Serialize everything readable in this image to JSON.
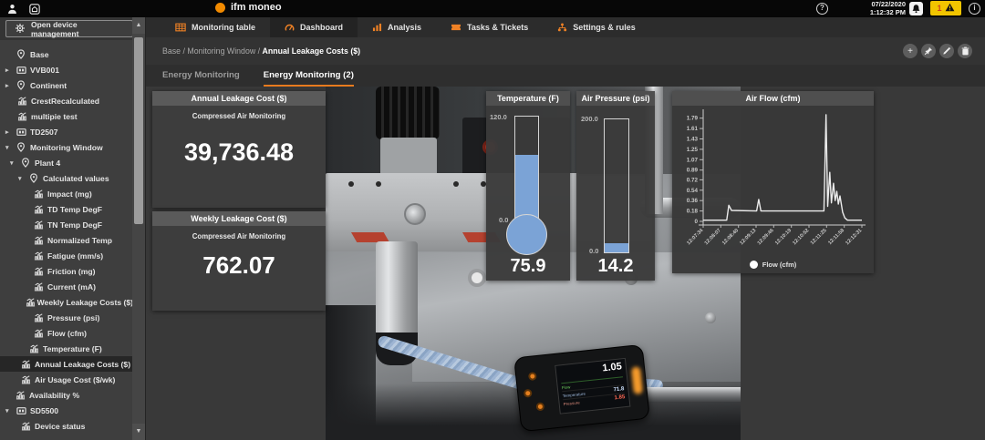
{
  "topbar": {
    "brand": "ifm moneo",
    "date": "07/22/2020",
    "time": "1:12:32 PM",
    "help_glyph": "?",
    "info_glyph": "i",
    "alert_count": "1"
  },
  "nav": {
    "device_management_label": "Open device management",
    "tabs": [
      {
        "label": "Monitoring table",
        "icon": "table",
        "active": false
      },
      {
        "label": "Dashboard",
        "icon": "gauge",
        "active": true
      },
      {
        "label": "Analysis",
        "icon": "analysis",
        "active": false
      },
      {
        "label": "Tasks & Tickets",
        "icon": "ticket",
        "active": false
      },
      {
        "label": "Settings & rules",
        "icon": "rules",
        "active": false
      }
    ]
  },
  "breadcrumb": {
    "path_prefix": "Base / Monitoring Window / ",
    "current": "Annual Leakage Costs ($)"
  },
  "subtabs": [
    {
      "label": "Energy Monitoring",
      "active": false
    },
    {
      "label": "Energy Monitoring (2)",
      "active": true
    }
  ],
  "sidebar": {
    "items": [
      {
        "label": "Base",
        "icon": "location",
        "arrow": "",
        "x": 18
      },
      {
        "label": "VVB001",
        "icon": "device",
        "arrow": "right",
        "x": 18
      },
      {
        "label": "Continent",
        "icon": "location",
        "arrow": "right",
        "x": 18
      },
      {
        "label": "CrestRecalculated",
        "icon": "calc",
        "arrow": "",
        "x": 19
      },
      {
        "label": "multipie test",
        "icon": "calc",
        "arrow": "",
        "x": 19
      },
      {
        "label": "TD2507",
        "icon": "device",
        "arrow": "right",
        "x": 18
      },
      {
        "label": "Monitoring Window",
        "icon": "location",
        "arrow": "down",
        "x": 18
      },
      {
        "label": "Plant 4",
        "icon": "location",
        "arrow": "down",
        "x": 23
      },
      {
        "label": "Calculated values",
        "icon": "location",
        "arrow": "down",
        "x": 32
      },
      {
        "label": "Impact (mg)",
        "icon": "calc",
        "arrow": "",
        "x": 37
      },
      {
        "label": "TD Temp DegF",
        "icon": "calc",
        "arrow": "",
        "x": 37
      },
      {
        "label": "TN Temp DegF",
        "icon": "calc",
        "arrow": "",
        "x": 37
      },
      {
        "label": "Normalized Temp",
        "icon": "calc",
        "arrow": "",
        "x": 37
      },
      {
        "label": "Fatigue (mm/s)",
        "icon": "calc",
        "arrow": "",
        "x": 37
      },
      {
        "label": "Friction (mg)",
        "icon": "calc",
        "arrow": "",
        "x": 37
      },
      {
        "label": "Current (mA)",
        "icon": "calc",
        "arrow": "",
        "x": 37
      },
      {
        "label": "Weekly Leakage Costs ($)",
        "icon": "calc",
        "arrow": "",
        "x": 37
      },
      {
        "label": "Pressure (psi)",
        "icon": "calc",
        "arrow": "",
        "x": 37
      },
      {
        "label": "Flow (cfm)",
        "icon": "calc",
        "arrow": "",
        "x": 37
      },
      {
        "label": "Temperature (F)",
        "icon": "calc",
        "arrow": "",
        "x": 32
      },
      {
        "label": "Annual Leakage Costs ($)",
        "icon": "calc",
        "arrow": "",
        "x": 23,
        "selected": true
      },
      {
        "label": "Air Usage Cost ($/wk)",
        "icon": "calc",
        "arrow": "",
        "x": 23
      },
      {
        "label": "Availability %",
        "icon": "calc",
        "arrow": "",
        "x": 17
      },
      {
        "label": "SD5500",
        "icon": "device",
        "arrow": "down",
        "x": 18
      },
      {
        "label": "Device status",
        "icon": "calc",
        "arrow": "",
        "x": 23
      }
    ]
  },
  "cards": {
    "annual": {
      "title": "Annual Leakage Cost ($)",
      "subtitle": "Compressed Air Monitoring",
      "value": "39,736.48"
    },
    "weekly": {
      "title": "Weekly Leakage Cost ($)",
      "subtitle": "Compressed Air Monitoring",
      "value": "762.07"
    },
    "temperature": {
      "title": "Temperature (F)",
      "max_label": "120.0",
      "min_label": "0.0",
      "value": "75.9",
      "fill_pct": 63
    },
    "pressure": {
      "title": "Air Pressure (psi)",
      "max_label": "200.0",
      "min_label": "0.0",
      "value": "14.2",
      "fill_pct": 7
    }
  },
  "chart_data": {
    "type": "line",
    "title": "Air Flow (cfm)",
    "legend": [
      "Flow (cfm)"
    ],
    "ylim": [
      0,
      1.88
    ],
    "yticks": [
      0,
      0.18,
      0.36,
      0.54,
      0.72,
      0.89,
      1.07,
      1.25,
      1.43,
      1.61,
      1.79
    ],
    "ytick_labels": [
      "0",
      "0.18",
      "0.36",
      "0.54",
      "0.72",
      "0.89",
      "1.07",
      "1.25",
      "1.43",
      "1.61",
      "1.79"
    ],
    "x_labels": [
      "12:07:34",
      "12:08:07",
      "12:08:40",
      "12:09:13",
      "12:09:46",
      "12:10:19",
      "12:10:52",
      "12:11:25",
      "12:11:58",
      "12:12:31"
    ],
    "x_range_seconds": [
      0,
      297
    ],
    "points": [
      [
        0,
        0.02
      ],
      [
        44,
        0.02
      ],
      [
        48,
        0.28
      ],
      [
        53,
        0.19
      ],
      [
        100,
        0.18
      ],
      [
        104,
        0.38
      ],
      [
        108,
        0.18
      ],
      [
        226,
        0.18
      ],
      [
        230,
        1.85
      ],
      [
        233,
        0.26
      ],
      [
        237,
        0.85
      ],
      [
        240,
        0.32
      ],
      [
        244,
        0.66
      ],
      [
        247,
        0.36
      ],
      [
        250,
        0.52
      ],
      [
        253,
        0.3
      ],
      [
        256,
        0.44
      ],
      [
        261,
        0.16
      ],
      [
        265,
        0.06
      ],
      [
        270,
        0.02
      ],
      [
        297,
        0.02
      ]
    ]
  },
  "photo": {
    "device": {
      "flow_value": "1.05",
      "flow_label": "Flow",
      "temperature_label": "Temperature",
      "temperature_value": "71.8",
      "pressure_label": "Pressure",
      "pressure_value": "1.85"
    }
  }
}
